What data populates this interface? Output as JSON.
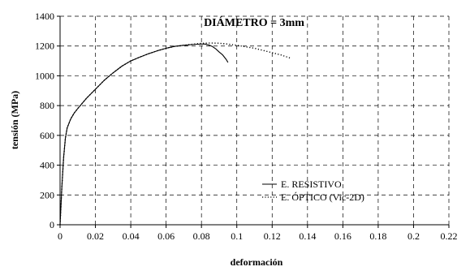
{
  "chart_data": {
    "type": "line",
    "title": "DIÁMETRO = 3mm",
    "xlabel": "deformación",
    "ylabel": "tensión (MPa)",
    "xlim": [
      0,
      0.22
    ],
    "ylim": [
      0,
      1400
    ],
    "xticks": [
      0,
      0.02,
      0.04,
      0.06,
      0.08,
      0.1,
      0.12,
      0.14,
      0.16,
      0.18,
      0.2,
      0.22
    ],
    "xtick_labels": [
      "0",
      "0.02",
      "0.04",
      "0.06",
      "0.08",
      "0.1",
      "0.12",
      "0.14",
      "0.16",
      "0.18",
      "0.2",
      "0.22"
    ],
    "yticks": [
      0,
      200,
      400,
      600,
      800,
      1000,
      1200,
      1400
    ],
    "ytick_labels": [
      "0",
      "200",
      "400",
      "600",
      "800",
      "1000",
      "1200",
      "1400"
    ],
    "grid": true,
    "grid_style": "dashed",
    "legend_position": "bottom-right",
    "series": [
      {
        "name": "E. RESISTIVO",
        "style": "solid",
        "color": "#000000",
        "x": [
          0,
          0.001,
          0.002,
          0.003,
          0.004,
          0.006,
          0.008,
          0.01,
          0.015,
          0.02,
          0.025,
          0.03,
          0.035,
          0.04,
          0.045,
          0.05,
          0.055,
          0.06,
          0.065,
          0.07,
          0.075,
          0.078,
          0.08,
          0.082,
          0.084,
          0.086,
          0.088,
          0.09,
          0.092,
          0.094,
          0.095
        ],
        "y": [
          0,
          250,
          450,
          580,
          650,
          710,
          750,
          780,
          850,
          910,
          970,
          1020,
          1065,
          1100,
          1125,
          1148,
          1168,
          1185,
          1198,
          1205,
          1210,
          1212,
          1213,
          1213,
          1208,
          1198,
          1182,
          1160,
          1140,
          1110,
          1090
        ]
      },
      {
        "name": "E. ÓPTICO (Vic-2D)",
        "style": "dotted",
        "color": "#000000",
        "x": [
          0,
          0.001,
          0.002,
          0.003,
          0.004,
          0.006,
          0.008,
          0.01,
          0.015,
          0.02,
          0.025,
          0.03,
          0.035,
          0.04,
          0.045,
          0.05,
          0.055,
          0.06,
          0.065,
          0.07,
          0.075,
          0.08,
          0.085,
          0.09,
          0.095,
          0.1,
          0.105,
          0.11,
          0.115,
          0.12,
          0.125,
          0.13
        ],
        "y": [
          0,
          250,
          450,
          580,
          650,
          710,
          750,
          780,
          850,
          910,
          970,
          1020,
          1065,
          1100,
          1125,
          1148,
          1168,
          1185,
          1198,
          1205,
          1212,
          1218,
          1220,
          1219,
          1213,
          1205,
          1195,
          1185,
          1170,
          1155,
          1140,
          1120
        ]
      }
    ]
  }
}
